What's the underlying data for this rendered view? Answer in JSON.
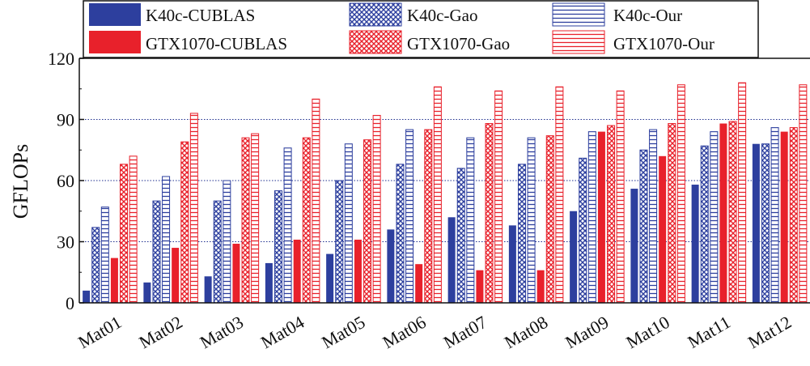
{
  "chart_data": {
    "type": "bar",
    "title": "",
    "xlabel": "",
    "ylabel": "GFLOPs",
    "ylim": [
      0,
      120
    ],
    "yticks": [
      0,
      30,
      60,
      90,
      120
    ],
    "gridlines": [
      30,
      60,
      90
    ],
    "legend_position": "top",
    "categories": [
      "Mat01",
      "Mat02",
      "Mat03",
      "Mat04",
      "Mat05",
      "Mat06",
      "Mat07",
      "Mat08",
      "Mat09",
      "Mat10",
      "Mat11",
      "Mat12"
    ],
    "series": [
      {
        "name": "K40c-CUBLAS",
        "color": "#2d3f9e",
        "pattern": "solid",
        "values": [
          6,
          10,
          13,
          19.5,
          24,
          36,
          42,
          38,
          45,
          56,
          58,
          78
        ]
      },
      {
        "name": "K40c-Gao",
        "color": "#2d3f9e",
        "pattern": "cross",
        "values": [
          37,
          50,
          50,
          55,
          60,
          68,
          66,
          68,
          71,
          75,
          77,
          78
        ]
      },
      {
        "name": "K40c-Our",
        "color": "#2d3f9e",
        "pattern": "hline",
        "values": [
          47,
          62,
          60,
          76,
          78,
          85,
          81,
          81,
          84,
          85,
          84,
          86
        ]
      },
      {
        "name": "GTX1070-CUBLAS",
        "color": "#e8212b",
        "pattern": "solid",
        "values": [
          22,
          27,
          29,
          31,
          31,
          19,
          16,
          16,
          84,
          72,
          88,
          84
        ]
      },
      {
        "name": "GTX1070-Gao",
        "color": "#e8212b",
        "pattern": "cross",
        "values": [
          68,
          79,
          81,
          81,
          80,
          85,
          88,
          82,
          87,
          88,
          89,
          86
        ]
      },
      {
        "name": "GTX1070-Our",
        "color": "#e8212b",
        "pattern": "hline",
        "values": [
          72,
          93,
          83,
          100,
          92,
          106,
          104,
          106,
          104,
          107,
          108,
          107
        ]
      }
    ]
  }
}
